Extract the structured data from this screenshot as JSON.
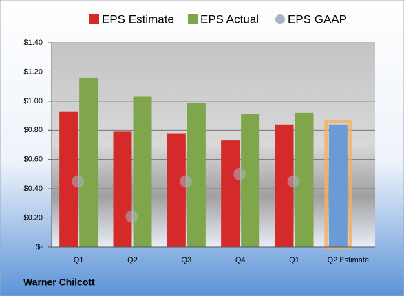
{
  "chart_data": {
    "type": "bar",
    "categories": [
      "Q1",
      "Q2",
      "Q3",
      "Q4",
      "Q1",
      "Q2 Estimate"
    ],
    "series": [
      {
        "name": "EPS Estimate",
        "color": "#d42a2a",
        "colors": [
          "#d42a2a",
          "#d42a2a",
          "#d42a2a",
          "#d42a2a",
          "#d42a2a",
          "#6b9bd6"
        ],
        "values": [
          0.93,
          0.79,
          0.78,
          0.73,
          0.84,
          0.84
        ]
      },
      {
        "name": "EPS Actual",
        "color": "#7fa64a",
        "values": [
          1.16,
          1.03,
          0.99,
          0.91,
          0.92,
          null
        ]
      },
      {
        "name": "EPS GAAP",
        "color": "#a9b4c2",
        "marker": "circle",
        "values": [
          0.45,
          0.21,
          0.45,
          0.5,
          0.45,
          null
        ]
      }
    ],
    "ylim": [
      0,
      1.4
    ],
    "yticks": [
      {
        "value": 0,
        "label": "$-"
      },
      {
        "value": 0.2,
        "label": "$0.20"
      },
      {
        "value": 0.4,
        "label": "$0.40"
      },
      {
        "value": 0.6,
        "label": "$0.60"
      },
      {
        "value": 0.8,
        "label": "$0.80"
      },
      {
        "value": 1.0,
        "label": "$1.00"
      },
      {
        "value": 1.2,
        "label": "$1.20"
      },
      {
        "value": 1.4,
        "label": "$1.40"
      }
    ],
    "grid": true,
    "legend": "top",
    "footer": "Warner Chilcott"
  }
}
